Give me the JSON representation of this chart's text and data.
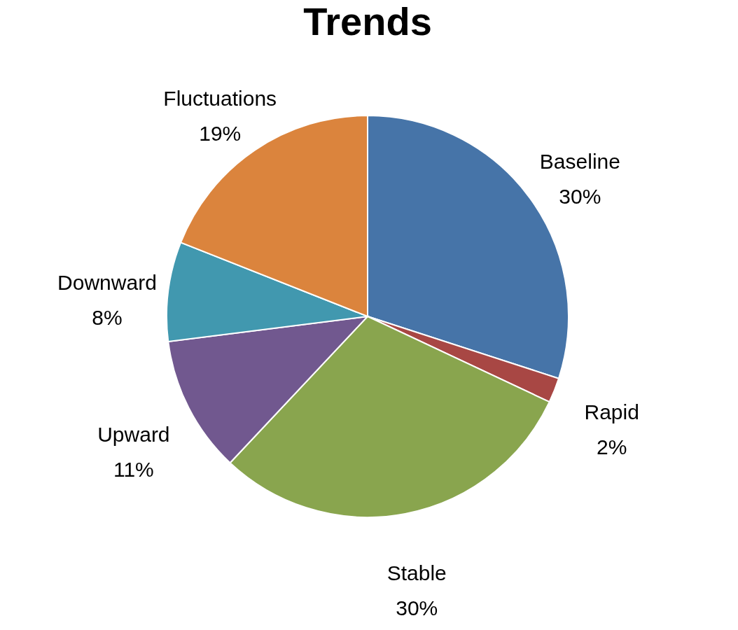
{
  "chart_data": {
    "type": "pie",
    "title": "Trends",
    "categories": [
      "Baseline",
      "Rapid",
      "Stable",
      "Upward",
      "Downward",
      "Fluctuations"
    ],
    "values": [
      30,
      2,
      30,
      11,
      8,
      19
    ],
    "value_labels": [
      "30%",
      "2%",
      "30%",
      "11%",
      "8%",
      "19%"
    ],
    "colors": [
      "#4674a8",
      "#a84744",
      "#89a54e",
      "#71588f",
      "#4198af",
      "#db843d"
    ],
    "legend": false
  }
}
